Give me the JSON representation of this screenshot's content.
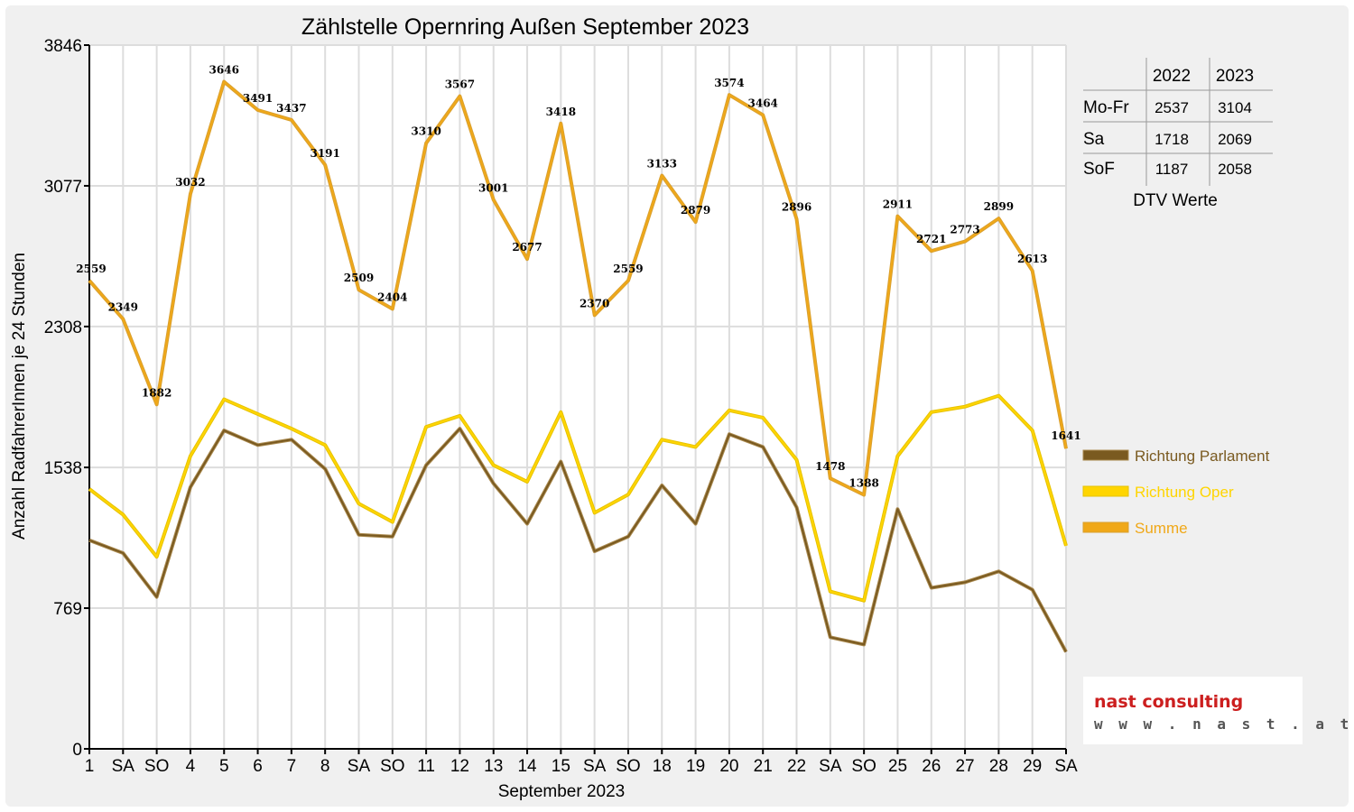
{
  "chart_data": {
    "type": "line",
    "title": "Zählstelle Opernring Außen September 2023",
    "xlabel": "September 2023",
    "ylabel": "Anzahl RadfahrerInnen je 24 Stunden",
    "ylim": [
      0,
      3846
    ],
    "yticks": [
      0,
      769,
      1538,
      2308,
      3077,
      3846
    ],
    "grid": true,
    "legend_position": "right",
    "categories": [
      "1",
      "SA",
      "SO",
      "4",
      "5",
      "6",
      "7",
      "8",
      "SA",
      "SO",
      "11",
      "12",
      "13",
      "14",
      "15",
      "SA",
      "SO",
      "18",
      "19",
      "20",
      "21",
      "22",
      "SA",
      "SO",
      "25",
      "26",
      "27",
      "28",
      "29",
      "SA"
    ],
    "category_colors": [
      "#000000",
      "#000000",
      "#e00000",
      "#000000",
      "#000000",
      "#000000",
      "#000000",
      "#000000",
      "#000000",
      "#e00000",
      "#000000",
      "#000000",
      "#000000",
      "#000000",
      "#000000",
      "#000000",
      "#e00000",
      "#000000",
      "#000000",
      "#000000",
      "#000000",
      "#000000",
      "#000000",
      "#e00000",
      "#000000",
      "#000000",
      "#000000",
      "#000000",
      "#000000",
      "#000000"
    ],
    "series": [
      {
        "name": "Richtung Parlament",
        "color": "#7a5a20",
        "values": [
          1140,
          1070,
          830,
          1430,
          1740,
          1660,
          1690,
          1530,
          1170,
          1160,
          1550,
          1750,
          1450,
          1230,
          1570,
          1080,
          1160,
          1440,
          1230,
          1720,
          1650,
          1320,
          610,
          570,
          1310,
          880,
          910,
          970,
          870,
          530
        ]
      },
      {
        "name": "Richtung Oper",
        "color": "#ffd500",
        "values": [
          1420,
          1280,
          1050,
          1600,
          1910,
          1830,
          1750,
          1660,
          1340,
          1240,
          1760,
          1820,
          1550,
          1460,
          1840,
          1290,
          1390,
          1690,
          1650,
          1850,
          1810,
          1580,
          860,
          810,
          1600,
          1840,
          1870,
          1930,
          1740,
          1110
        ]
      },
      {
        "name": "Summe",
        "color": "#f0a818",
        "values": [
          2559,
          2349,
          1882,
          3032,
          3646,
          3491,
          3437,
          3191,
          2509,
          2404,
          3310,
          3567,
          3001,
          2677,
          3418,
          2370,
          2559,
          3133,
          2879,
          3574,
          3464,
          2896,
          1478,
          1388,
          2911,
          2721,
          2773,
          2899,
          2613,
          1641
        ],
        "data_labels": [
          "2559",
          "2349",
          "1882",
          "3032",
          "3646",
          "3491",
          "3437",
          "3191",
          "2509",
          "2404",
          "3310",
          "3567",
          "3001",
          "2677",
          "3418",
          "2370",
          "2559",
          "3133",
          "2879",
          "3574",
          "3464",
          "2896",
          "1478",
          "1388",
          "2911",
          "2721",
          "2773",
          "2899",
          "2613",
          "1641"
        ]
      }
    ],
    "dtv_table": {
      "headers": [
        "",
        "2022",
        "2023"
      ],
      "rows": [
        [
          "Mo-Fr",
          "2537",
          "3104"
        ],
        [
          "Sa",
          "1718",
          "2069"
        ],
        [
          "SoF",
          "1187",
          "2058"
        ]
      ],
      "caption": "DTV Werte"
    }
  },
  "logo": {
    "main": "nast consulting",
    "url": "w w w . n a s t . a t"
  }
}
